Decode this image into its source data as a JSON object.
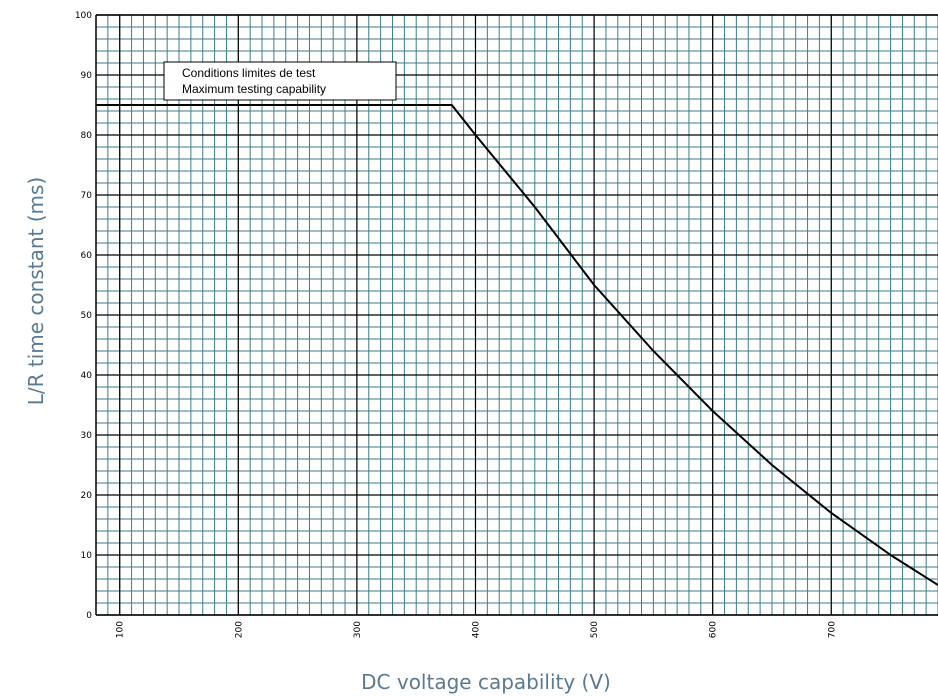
{
  "chart_data": {
    "type": "line",
    "title": "",
    "xlabel": "DC voltage capability (V)",
    "ylabel": "L/R time constant (ms)",
    "xlim": [
      80,
      790
    ],
    "ylim": [
      0,
      100
    ],
    "x_ticks": [
      100,
      200,
      300,
      400,
      500,
      600,
      700
    ],
    "y_ticks": [
      0,
      10,
      20,
      30,
      40,
      50,
      60,
      70,
      80,
      90,
      100
    ],
    "grid": true,
    "minor_x_step": 10,
    "minor_y_step": 2,
    "colors": {
      "minor_grid": "#3b7f86",
      "major_grid": "#000000",
      "curve": "#000000",
      "axis_title": "#5a7a93"
    },
    "legend_box": {
      "lines": [
        "Conditions limites de test",
        "Maximum testing capability"
      ],
      "placement": "top-left"
    },
    "series": [
      {
        "x": [
          80,
          380,
          400,
          450,
          500,
          550,
          600,
          650,
          700,
          750,
          790
        ],
        "y": [
          85,
          85,
          80,
          68,
          55,
          44,
          34,
          25,
          17,
          10,
          5
        ]
      }
    ]
  }
}
